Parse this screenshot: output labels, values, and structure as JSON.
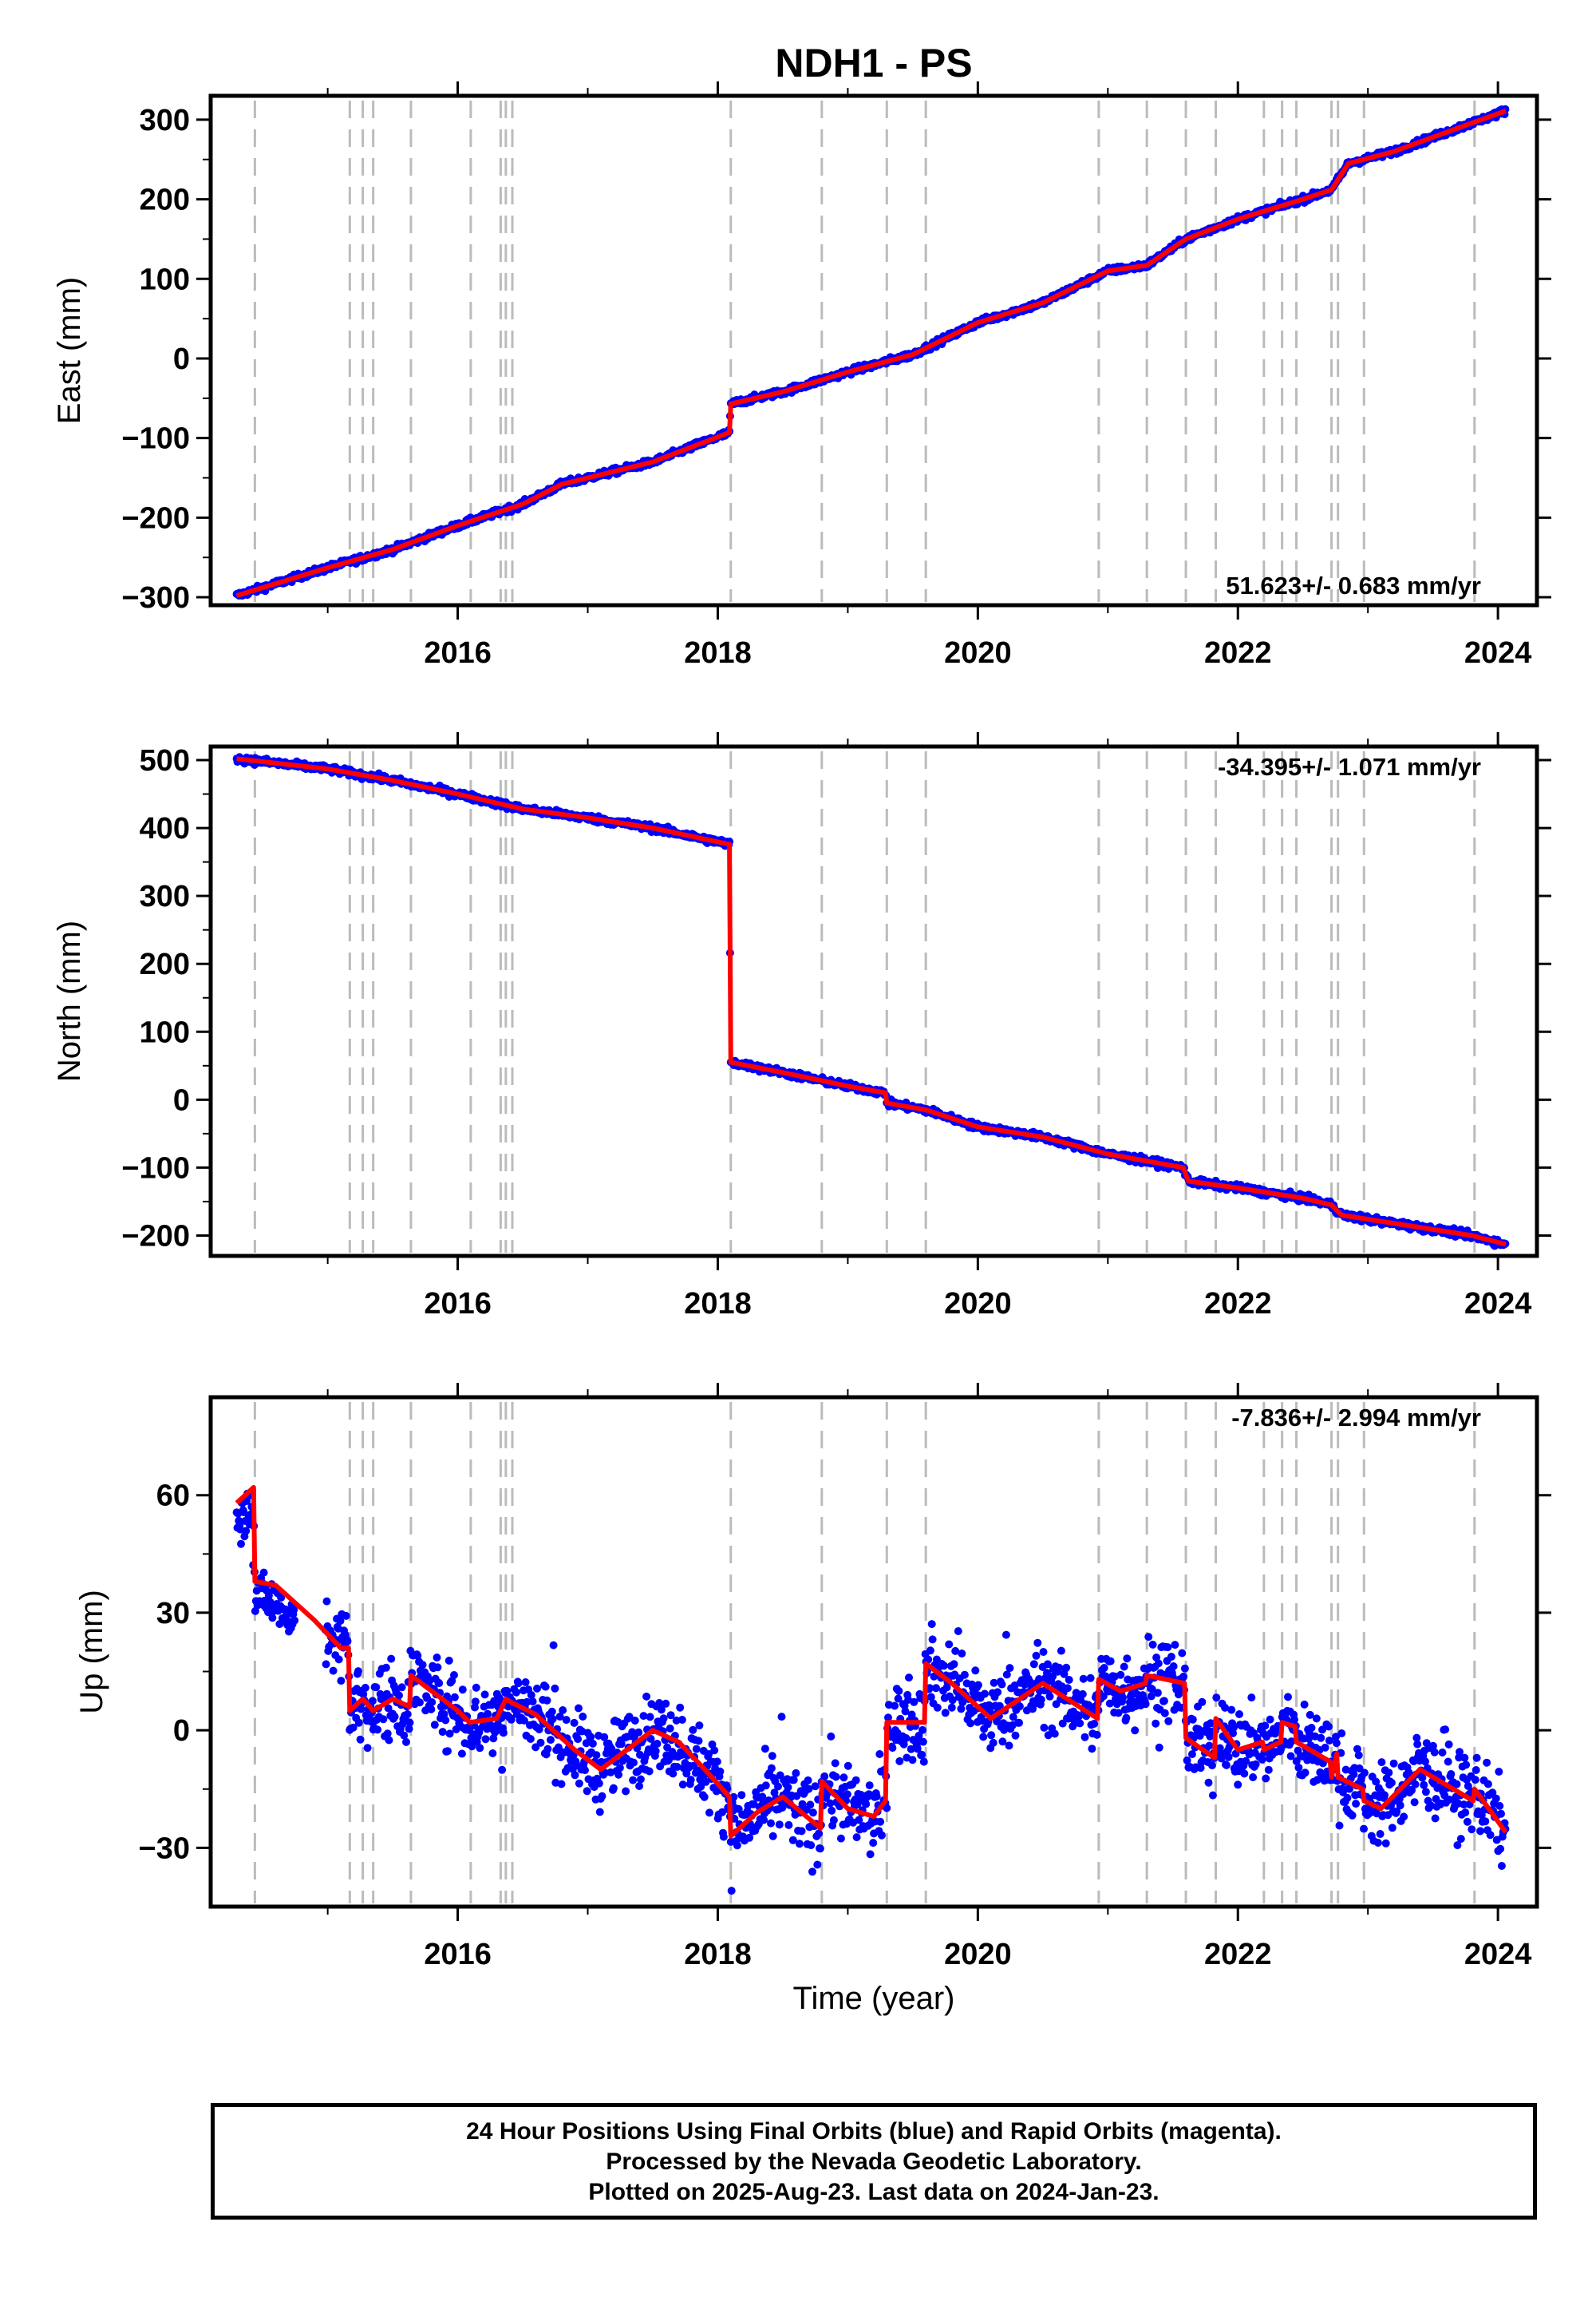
{
  "title": "NDH1 - PS",
  "xlabel": "Time (year)",
  "footer": {
    "line1": "24 Hour Positions Using Final Orbits (blue) and Rapid Orbits (magenta).",
    "line2": "Processed by the Nevada Geodetic Laboratory.",
    "line3": "Plotted on 2025-Aug-23. Last data on 2024-Jan-23."
  },
  "colors": {
    "points": "#0000ff",
    "fit": "#ff0000",
    "event_lines": "#bbbbbb"
  },
  "chart_data": [
    {
      "type": "scatter",
      "ylabel": "East (mm)",
      "rate_label": "51.623+/- 0.683 mm/yr",
      "rate_position": "bottom-right",
      "xlim": [
        2014.1,
        2024.3
      ],
      "ylim": [
        -310,
        330
      ],
      "yticks": [
        -300,
        -200,
        -100,
        0,
        100,
        200,
        300
      ],
      "xticks": [
        2016,
        2018,
        2020,
        2022,
        2024
      ],
      "grid": false,
      "event_lines": [
        2014.44,
        2015.17,
        2015.27,
        2015.35,
        2015.64,
        2016.1,
        2016.33,
        2016.37,
        2016.42,
        2018.1,
        2018.8,
        2019.3,
        2019.6,
        2020.93,
        2021.3,
        2021.6,
        2021.83,
        2022.2,
        2022.34,
        2022.45,
        2022.72,
        2022.77,
        2022.97,
        2023.82
      ],
      "fit": [
        [
          2014.3,
          -298
        ],
        [
          2015.0,
          -263
        ],
        [
          2015.5,
          -240
        ],
        [
          2016.0,
          -210
        ],
        [
          2016.5,
          -183
        ],
        [
          2016.8,
          -158
        ],
        [
          2017.5,
          -130
        ],
        [
          2018.09,
          -93
        ],
        [
          2018.1,
          -57
        ],
        [
          2018.5,
          -42
        ],
        [
          2019.0,
          -17
        ],
        [
          2019.5,
          5
        ],
        [
          2020.0,
          45
        ],
        [
          2020.5,
          70
        ],
        [
          2021.0,
          110
        ],
        [
          2021.3,
          117
        ],
        [
          2021.6,
          150
        ],
        [
          2022.0,
          175
        ],
        [
          2022.5,
          200
        ],
        [
          2022.72,
          212
        ],
        [
          2022.85,
          245
        ],
        [
          2023.2,
          260
        ],
        [
          2023.7,
          290
        ],
        [
          2024.06,
          311
        ]
      ],
      "scatter_band": {
        "x_start": 2014.3,
        "x_end": 2024.06,
        "spread_mm": 4
      }
    },
    {
      "type": "scatter",
      "ylabel": "North (mm)",
      "rate_label": "-34.395+/- 1.071 mm/yr",
      "rate_position": "top-right",
      "xlim": [
        2014.1,
        2024.3
      ],
      "ylim": [
        -230,
        520
      ],
      "yticks": [
        -200,
        -100,
        0,
        100,
        200,
        300,
        400,
        500
      ],
      "xticks": [
        2016,
        2018,
        2020,
        2022,
        2024
      ],
      "grid": false,
      "event_lines": [
        2014.44,
        2015.17,
        2015.27,
        2015.35,
        2015.64,
        2016.1,
        2016.33,
        2016.37,
        2016.42,
        2018.1,
        2018.8,
        2019.3,
        2019.6,
        2020.93,
        2021.3,
        2021.6,
        2021.83,
        2022.2,
        2022.34,
        2022.45,
        2022.72,
        2022.77,
        2022.97,
        2023.82
      ],
      "fit": [
        [
          2014.3,
          502
        ],
        [
          2015.0,
          487
        ],
        [
          2015.5,
          470
        ],
        [
          2016.0,
          450
        ],
        [
          2016.5,
          428
        ],
        [
          2017.0,
          415
        ],
        [
          2017.5,
          400
        ],
        [
          2018.09,
          376
        ],
        [
          2018.1,
          55
        ],
        [
          2018.5,
          40
        ],
        [
          2019.0,
          20
        ],
        [
          2019.29,
          10
        ],
        [
          2019.3,
          -5
        ],
        [
          2019.6,
          -15
        ],
        [
          2020.0,
          -40
        ],
        [
          2020.5,
          -55
        ],
        [
          2021.0,
          -80
        ],
        [
          2021.58,
          -100
        ],
        [
          2021.62,
          -120
        ],
        [
          2022.0,
          -130
        ],
        [
          2022.5,
          -145
        ],
        [
          2022.72,
          -155
        ],
        [
          2022.8,
          -170
        ],
        [
          2023.3,
          -185
        ],
        [
          2023.8,
          -200
        ],
        [
          2024.06,
          -213
        ]
      ],
      "scatter_band": {
        "x_start": 2014.3,
        "x_end": 2024.06,
        "spread_mm": 5
      }
    },
    {
      "type": "scatter",
      "ylabel": "Up (mm)",
      "rate_label": "-7.836+/- 2.994 mm/yr",
      "rate_position": "top-right",
      "xlim": [
        2014.1,
        2024.3
      ],
      "ylim": [
        -45,
        85
      ],
      "yticks": [
        -30,
        0,
        30,
        60
      ],
      "xticks": [
        2016,
        2018,
        2020,
        2022,
        2024
      ],
      "grid": false,
      "event_lines": [
        2014.44,
        2015.17,
        2015.27,
        2015.35,
        2015.64,
        2016.1,
        2016.33,
        2016.37,
        2016.42,
        2018.1,
        2018.8,
        2019.3,
        2019.6,
        2020.93,
        2021.3,
        2021.6,
        2021.83,
        2022.2,
        2022.34,
        2022.45,
        2022.72,
        2022.77,
        2022.97,
        2023.82
      ],
      "fit": [
        [
          2014.3,
          58
        ],
        [
          2014.43,
          62
        ],
        [
          2014.44,
          38
        ],
        [
          2014.6,
          37
        ],
        [
          2014.9,
          28
        ],
        [
          2015.1,
          21
        ],
        [
          2015.16,
          21
        ],
        [
          2015.17,
          5
        ],
        [
          2015.27,
          8
        ],
        [
          2015.35,
          5
        ],
        [
          2015.5,
          8
        ],
        [
          2015.63,
          6
        ],
        [
          2015.64,
          14
        ],
        [
          2016.0,
          5
        ],
        [
          2016.09,
          2
        ],
        [
          2016.3,
          3
        ],
        [
          2016.37,
          8
        ],
        [
          2016.42,
          7
        ],
        [
          2016.6,
          4
        ],
        [
          2016.9,
          -5
        ],
        [
          2017.1,
          -10
        ],
        [
          2017.3,
          -5
        ],
        [
          2017.5,
          0
        ],
        [
          2017.7,
          -3
        ],
        [
          2017.9,
          -10
        ],
        [
          2018.09,
          -17
        ],
        [
          2018.1,
          -27
        ],
        [
          2018.3,
          -21
        ],
        [
          2018.5,
          -17
        ],
        [
          2018.79,
          -25
        ],
        [
          2018.8,
          -13
        ],
        [
          2019.0,
          -20
        ],
        [
          2019.2,
          -22
        ],
        [
          2019.29,
          -18
        ],
        [
          2019.3,
          2
        ],
        [
          2019.59,
          2
        ],
        [
          2019.6,
          17
        ],
        [
          2019.8,
          12
        ],
        [
          2020.1,
          3
        ],
        [
          2020.5,
          12
        ],
        [
          2020.92,
          3
        ],
        [
          2020.93,
          13
        ],
        [
          2021.1,
          10
        ],
        [
          2021.29,
          12
        ],
        [
          2021.3,
          14
        ],
        [
          2021.59,
          12
        ],
        [
          2021.6,
          -2
        ],
        [
          2021.82,
          -7
        ],
        [
          2021.83,
          3
        ],
        [
          2022.0,
          -5
        ],
        [
          2022.19,
          -3
        ],
        [
          2022.2,
          -5
        ],
        [
          2022.33,
          -3
        ],
        [
          2022.34,
          2
        ],
        [
          2022.44,
          1
        ],
        [
          2022.45,
          -3
        ],
        [
          2022.71,
          -8
        ],
        [
          2022.72,
          -12
        ],
        [
          2022.76,
          -6
        ],
        [
          2022.77,
          -12
        ],
        [
          2022.96,
          -15
        ],
        [
          2022.97,
          -18
        ],
        [
          2023.1,
          -20
        ],
        [
          2023.4,
          -10
        ],
        [
          2023.81,
          -18
        ],
        [
          2023.82,
          -15
        ],
        [
          2024.06,
          -26
        ]
      ],
      "scatter_band": {
        "x_start": 2014.3,
        "x_end": 2024.06,
        "spread_mm": 10
      }
    }
  ]
}
